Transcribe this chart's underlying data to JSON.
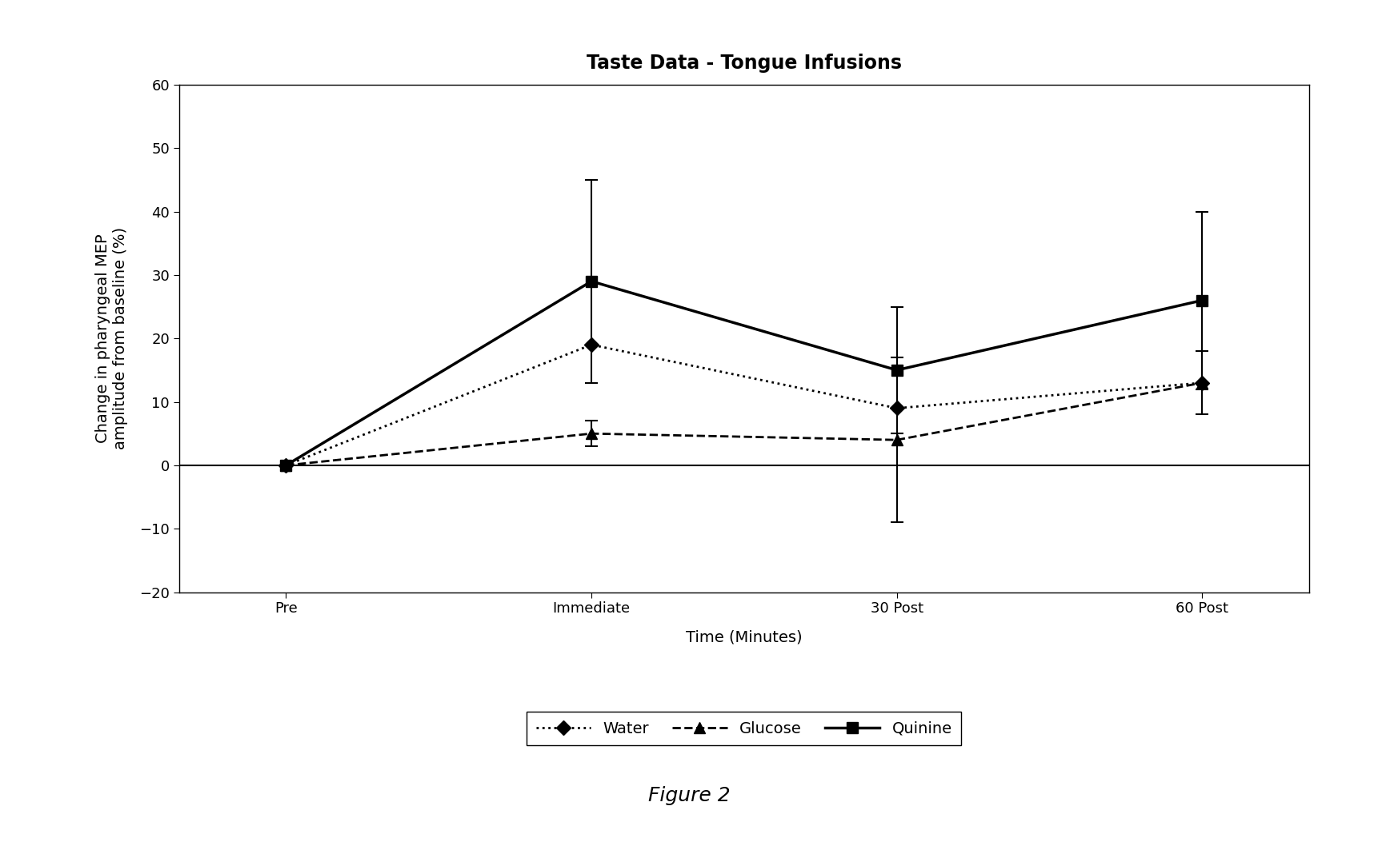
{
  "title": "Taste Data - Tongue Infusions",
  "xlabel": "Time (Minutes)",
  "ylabel": "Change in pharyngeal MEP\namplitude from baseline (%)",
  "figure_caption": "Figure 2",
  "x_labels": [
    "Pre",
    "Immediate",
    "30 Post",
    "60 Post"
  ],
  "x_positions": [
    0,
    1,
    2,
    3
  ],
  "ylim": [
    -20,
    60
  ],
  "yticks": [
    -20,
    -10,
    0,
    10,
    20,
    30,
    40,
    50,
    60
  ],
  "series": {
    "Water": {
      "values": [
        0,
        19,
        9,
        13
      ],
      "errors": [
        0,
        0,
        0,
        0
      ],
      "color": "#000000",
      "linestyle": "dotted",
      "marker": "D",
      "linewidth": 2,
      "markersize": 9
    },
    "Glucose": {
      "values": [
        0,
        5,
        4,
        13
      ],
      "errors": [
        0,
        2,
        13,
        5
      ],
      "color": "#000000",
      "linestyle": "dashed",
      "marker": "^",
      "linewidth": 2,
      "markersize": 10
    },
    "Quinine": {
      "values": [
        0,
        29,
        15,
        26
      ],
      "errors": [
        0,
        16,
        10,
        14
      ],
      "color": "#000000",
      "linestyle": "solid",
      "marker": "s",
      "linewidth": 2.5,
      "markersize": 10
    }
  },
  "background_color": "#ffffff",
  "plot_bg_color": "#ffffff",
  "title_fontsize": 17,
  "label_fontsize": 14,
  "tick_fontsize": 13,
  "legend_fontsize": 14,
  "caption_fontsize": 18
}
